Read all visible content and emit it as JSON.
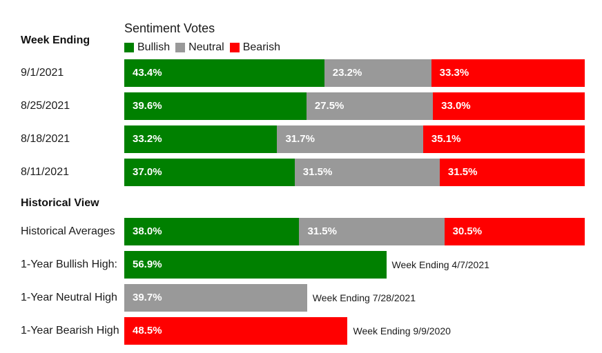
{
  "chart_data": {
    "type": "bar",
    "orientation": "horizontal-stacked",
    "title": "Sentiment Votes",
    "legend": {
      "placement": "top-left",
      "items": [
        {
          "name": "Bullish",
          "color": "#008000"
        },
        {
          "name": "Neutral",
          "color": "#999999"
        },
        {
          "name": "Bearish",
          "color": "#ff0000"
        }
      ]
    },
    "sections": [
      {
        "header": "Week Ending",
        "rows": [
          {
            "label": "9/1/2021",
            "segments": [
              {
                "series": "Bullish",
                "value": 43.4,
                "text": "43.4%"
              },
              {
                "series": "Neutral",
                "value": 23.2,
                "text": "23.2%"
              },
              {
                "series": "Bearish",
                "value": 33.3,
                "text": "33.3%"
              }
            ]
          },
          {
            "label": "8/25/2021",
            "segments": [
              {
                "series": "Bullish",
                "value": 39.6,
                "text": "39.6%"
              },
              {
                "series": "Neutral",
                "value": 27.5,
                "text": "27.5%"
              },
              {
                "series": "Bearish",
                "value": 33.0,
                "text": "33.0%"
              }
            ]
          },
          {
            "label": "8/18/2021",
            "segments": [
              {
                "series": "Bullish",
                "value": 33.2,
                "text": "33.2%"
              },
              {
                "series": "Neutral",
                "value": 31.7,
                "text": "31.7%"
              },
              {
                "series": "Bearish",
                "value": 35.1,
                "text": "35.1%"
              }
            ]
          },
          {
            "label": "8/11/2021",
            "segments": [
              {
                "series": "Bullish",
                "value": 37.0,
                "text": "37.0%"
              },
              {
                "series": "Neutral",
                "value": 31.5,
                "text": "31.5%"
              },
              {
                "series": "Bearish",
                "value": 31.5,
                "text": "31.5%"
              }
            ]
          }
        ]
      },
      {
        "header": "Historical View",
        "rows": [
          {
            "label": "Historical Averages",
            "segments": [
              {
                "series": "Bullish",
                "value": 38.0,
                "text": "38.0%"
              },
              {
                "series": "Neutral",
                "value": 31.5,
                "text": "31.5%"
              },
              {
                "series": "Bearish",
                "value": 30.5,
                "text": "30.5%"
              }
            ]
          },
          {
            "label": "1-Year Bullish High:",
            "segments": [
              {
                "series": "Bullish",
                "value": 56.9,
                "text": "56.9%"
              }
            ],
            "note": "Week Ending 4/7/2021"
          },
          {
            "label": "1-Year Neutral High",
            "segments": [
              {
                "series": "Neutral",
                "value": 39.7,
                "text": "39.7%"
              }
            ],
            "note": "Week Ending 7/28/2021"
          },
          {
            "label": "1-Year Bearish High",
            "segments": [
              {
                "series": "Bearish",
                "value": 48.5,
                "text": "48.5%"
              }
            ],
            "note": "Week Ending 9/9/2020"
          }
        ]
      }
    ],
    "xlim": [
      0,
      100
    ]
  }
}
